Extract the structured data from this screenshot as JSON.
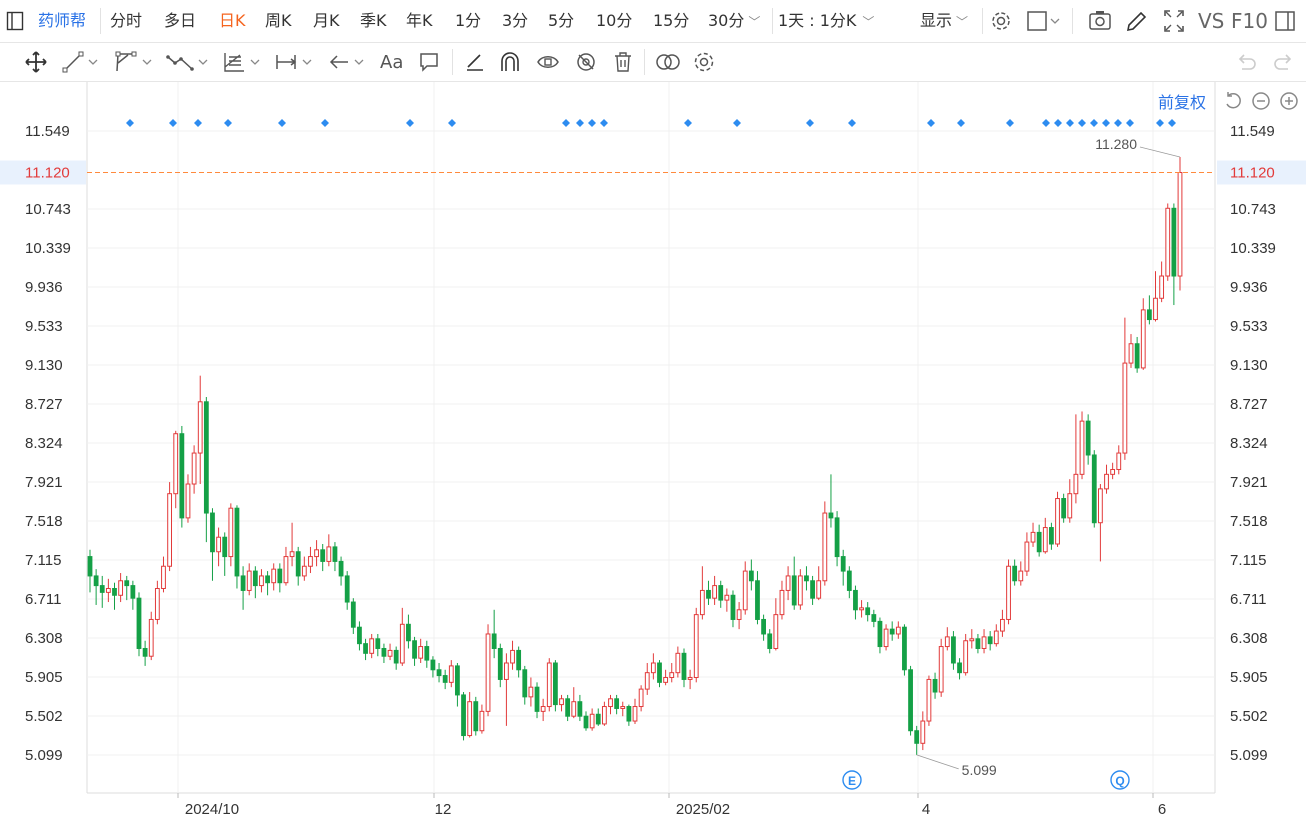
{
  "topbar": {
    "logo_icon": "panel-toggle-icon",
    "stock_name": "药师帮",
    "periods": [
      {
        "label": "分时",
        "active": false
      },
      {
        "label": "多日",
        "active": false
      },
      {
        "label": "日K",
        "active": true
      },
      {
        "label": "周K",
        "active": false
      },
      {
        "label": "月K",
        "active": false
      },
      {
        "label": "季K",
        "active": false
      },
      {
        "label": "年K",
        "active": false
      },
      {
        "label": "1分",
        "active": false
      },
      {
        "label": "3分",
        "active": false
      },
      {
        "label": "5分",
        "active": false
      },
      {
        "label": "10分",
        "active": false
      },
      {
        "label": "15分",
        "active": false
      }
    ],
    "more_period": "30分",
    "cycle_select": "1天 : 1分K",
    "display_label": "显示",
    "vs_label": "VS",
    "f10_label": "F10"
  },
  "toolbar": {
    "tools": [
      "move-icon",
      "line-tool-icon",
      "channel-tool-icon",
      "wave-tool-icon",
      "fib-tool-icon",
      "measure-tool-icon",
      "arrow-tool-icon",
      "text-tool-icon",
      "comment-tool-icon",
      "pen-tool-icon",
      "magnet-icon",
      "hide-drawings-icon",
      "hide-eye-icon",
      "delete-icon",
      "link-icon",
      "settings-icon"
    ],
    "text_tool_label": "Aa"
  },
  "chart_header": {
    "adjust_label": "前复权"
  },
  "chart_data": {
    "type": "candlestick",
    "y_ticks": [
      "11.549",
      "10.743",
      "10.339",
      "9.936",
      "9.533",
      "9.130",
      "8.727",
      "8.324",
      "7.921",
      "7.518",
      "7.115",
      "6.711",
      "6.308",
      "5.905",
      "5.502",
      "5.099"
    ],
    "ylim": [
      5.099,
      11.549
    ],
    "x_labels": [
      "2024/10",
      "12",
      "2025/02",
      "4",
      "6"
    ],
    "current_price": "11.120",
    "high_label": "11.280",
    "low_label": "5.099",
    "event_markers": [
      "E",
      "Q"
    ],
    "colors": {
      "up": "#e23a3a",
      "down": "#14a046",
      "marker": "#2d8cf0",
      "price_line": "#ff8a3d",
      "accent": "#2a72e6"
    },
    "candles": [
      [
        7.15,
        6.95,
        7.22,
        6.78
      ],
      [
        6.95,
        6.85,
        7.02,
        6.65
      ],
      [
        6.85,
        6.78,
        6.95,
        6.62
      ],
      [
        6.78,
        6.82,
        6.92,
        6.68
      ],
      [
        6.82,
        6.75,
        6.88,
        6.6
      ],
      [
        6.75,
        6.9,
        6.98,
        6.68
      ],
      [
        6.9,
        6.85,
        6.95,
        6.7
      ],
      [
        6.85,
        6.72,
        6.9,
        6.6
      ],
      [
        6.72,
        6.2,
        6.78,
        6.12
      ],
      [
        6.2,
        6.12,
        6.28,
        6.02
      ],
      [
        6.12,
        6.5,
        6.58,
        6.08
      ],
      [
        6.5,
        6.82,
        6.9,
        6.45
      ],
      [
        6.82,
        7.05,
        7.15,
        6.78
      ],
      [
        7.05,
        7.8,
        7.92,
        7.0
      ],
      [
        7.8,
        8.42,
        8.45,
        7.65
      ],
      [
        8.42,
        7.55,
        8.5,
        7.45
      ],
      [
        7.55,
        7.9,
        8.0,
        7.5
      ],
      [
        7.9,
        8.22,
        8.3,
        7.8
      ],
      [
        8.22,
        8.75,
        9.02,
        7.9
      ],
      [
        8.75,
        7.6,
        8.8,
        7.3
      ],
      [
        7.6,
        7.2,
        7.65,
        6.9
      ],
      [
        7.2,
        7.35,
        7.45,
        7.05
      ],
      [
        7.35,
        7.15,
        7.4,
        6.95
      ],
      [
        7.15,
        7.65,
        7.7,
        7.05
      ],
      [
        7.65,
        6.95,
        7.68,
        6.82
      ],
      [
        6.95,
        6.8,
        7.05,
        6.6
      ],
      [
        6.8,
        7.0,
        7.08,
        6.75
      ],
      [
        7.0,
        6.85,
        7.05,
        6.72
      ],
      [
        6.85,
        6.95,
        7.02,
        6.78
      ],
      [
        6.95,
        6.88,
        7.0,
        6.75
      ],
      [
        6.88,
        7.02,
        7.08,
        6.8
      ],
      [
        7.02,
        6.88,
        7.08,
        6.78
      ],
      [
        6.88,
        7.15,
        7.25,
        6.85
      ],
      [
        7.15,
        7.2,
        7.5,
        7.05
      ],
      [
        7.2,
        6.95,
        7.25,
        6.85
      ],
      [
        6.95,
        7.05,
        7.15,
        6.9
      ],
      [
        7.05,
        7.15,
        7.25,
        6.98
      ],
      [
        7.15,
        7.22,
        7.32,
        7.05
      ],
      [
        7.22,
        7.1,
        7.28,
        7.0
      ],
      [
        7.1,
        7.25,
        7.38,
        7.05
      ],
      [
        7.25,
        7.1,
        7.3,
        7.0
      ],
      [
        7.1,
        6.95,
        7.15,
        6.85
      ],
      [
        6.95,
        6.68,
        7.0,
        6.6
      ],
      [
        6.68,
        6.42,
        6.72,
        6.35
      ],
      [
        6.42,
        6.25,
        6.48,
        6.18
      ],
      [
        6.25,
        6.15,
        6.3,
        6.08
      ],
      [
        6.15,
        6.3,
        6.35,
        6.1
      ],
      [
        6.3,
        6.2,
        6.35,
        6.12
      ],
      [
        6.2,
        6.12,
        6.25,
        6.05
      ],
      [
        6.12,
        6.18,
        6.25,
        6.08
      ],
      [
        6.18,
        6.05,
        6.22,
        5.98
      ],
      [
        6.05,
        6.45,
        6.62,
        6.02
      ],
      [
        6.45,
        6.28,
        6.55,
        6.2
      ],
      [
        6.28,
        6.1,
        6.32,
        6.02
      ],
      [
        6.1,
        6.22,
        6.3,
        6.05
      ],
      [
        6.22,
        6.08,
        6.28,
        6.0
      ],
      [
        6.08,
        5.98,
        6.12,
        5.9
      ],
      [
        5.98,
        5.92,
        6.05,
        5.85
      ],
      [
        5.92,
        5.85,
        5.98,
        5.78
      ],
      [
        5.85,
        6.02,
        6.08,
        5.8
      ],
      [
        6.02,
        5.72,
        6.05,
        5.6
      ],
      [
        5.72,
        5.3,
        5.75,
        5.25
      ],
      [
        5.3,
        5.65,
        5.75,
        5.28
      ],
      [
        5.65,
        5.35,
        5.7,
        5.3
      ],
      [
        5.35,
        5.55,
        5.62,
        5.32
      ],
      [
        5.55,
        6.35,
        6.45,
        5.5
      ],
      [
        6.35,
        6.2,
        6.6,
        6.1
      ],
      [
        6.2,
        5.88,
        6.25,
        5.8
      ],
      [
        5.88,
        6.05,
        6.15,
        5.4
      ],
      [
        6.05,
        6.18,
        6.28,
        5.98
      ],
      [
        6.18,
        5.98,
        6.22,
        5.9
      ],
      [
        5.98,
        5.7,
        6.02,
        5.62
      ],
      [
        5.7,
        5.8,
        5.9,
        5.6
      ],
      [
        5.8,
        5.55,
        5.85,
        5.48
      ],
      [
        5.55,
        5.6,
        5.68,
        5.45
      ],
      [
        5.6,
        6.05,
        6.1,
        5.55
      ],
      [
        6.05,
        5.62,
        6.08,
        5.55
      ],
      [
        5.62,
        5.68,
        5.72,
        5.55
      ],
      [
        5.68,
        5.5,
        5.72,
        5.45
      ],
      [
        5.5,
        5.65,
        5.8,
        5.48
      ],
      [
        5.65,
        5.5,
        5.72,
        5.45
      ],
      [
        5.5,
        5.38,
        5.55,
        5.35
      ],
      [
        5.38,
        5.52,
        5.58,
        5.35
      ],
      [
        5.52,
        5.42,
        5.58,
        5.4
      ],
      [
        5.42,
        5.6,
        5.65,
        5.4
      ],
      [
        5.6,
        5.68,
        5.72,
        5.52
      ],
      [
        5.68,
        5.58,
        5.72,
        5.52
      ],
      [
        5.58,
        5.6,
        5.65,
        5.5
      ],
      [
        5.6,
        5.45,
        5.62,
        5.4
      ],
      [
        5.45,
        5.6,
        5.68,
        5.42
      ],
      [
        5.6,
        5.78,
        5.82,
        5.55
      ],
      [
        5.78,
        5.95,
        6.05,
        5.72
      ],
      [
        5.95,
        6.05,
        6.15,
        5.88
      ],
      [
        6.05,
        5.85,
        6.08,
        5.8
      ],
      [
        5.85,
        5.9,
        5.98,
        5.82
      ],
      [
        5.9,
        5.95,
        6.05,
        5.85
      ],
      [
        5.95,
        6.15,
        6.22,
        5.9
      ],
      [
        6.15,
        5.88,
        6.2,
        5.8
      ],
      [
        5.88,
        5.9,
        5.98,
        5.78
      ],
      [
        5.9,
        6.55,
        6.62,
        5.85
      ],
      [
        6.55,
        6.8,
        7.05,
        6.5
      ],
      [
        6.8,
        6.72,
        6.9,
        6.65
      ],
      [
        6.72,
        6.85,
        6.95,
        6.65
      ],
      [
        6.85,
        6.7,
        6.9,
        6.62
      ],
      [
        6.7,
        6.75,
        6.82,
        6.58
      ],
      [
        6.75,
        6.5,
        6.8,
        6.42
      ],
      [
        6.5,
        6.6,
        6.68,
        6.4
      ],
      [
        6.6,
        7.0,
        7.1,
        6.55
      ],
      [
        7.0,
        6.9,
        7.12,
        6.8
      ],
      [
        6.9,
        6.5,
        7.0,
        6.45
      ],
      [
        6.5,
        6.35,
        6.55,
        6.28
      ],
      [
        6.35,
        6.2,
        6.4,
        6.15
      ],
      [
        6.2,
        6.55,
        6.72,
        6.18
      ],
      [
        6.55,
        6.8,
        6.9,
        6.5
      ],
      [
        6.8,
        6.95,
        7.05,
        6.7
      ],
      [
        6.95,
        6.65,
        7.15,
        6.6
      ],
      [
        6.65,
        6.95,
        7.02,
        6.6
      ],
      [
        6.95,
        6.9,
        7.05,
        6.8
      ],
      [
        6.9,
        6.72,
        6.95,
        6.65
      ],
      [
        6.72,
        6.9,
        7.05,
        6.7
      ],
      [
        6.9,
        7.6,
        7.72,
        6.85
      ],
      [
        7.6,
        7.55,
        8.0,
        7.45
      ],
      [
        7.55,
        7.15,
        7.62,
        7.05
      ],
      [
        7.15,
        7.0,
        7.22,
        6.85
      ],
      [
        7.0,
        6.8,
        7.05,
        6.72
      ],
      [
        6.8,
        6.6,
        6.85,
        6.5
      ],
      [
        6.6,
        6.62,
        6.7,
        6.52
      ],
      [
        6.62,
        6.55,
        6.68,
        6.48
      ],
      [
        6.55,
        6.48,
        6.6,
        6.42
      ],
      [
        6.48,
        6.22,
        6.52,
        6.15
      ],
      [
        6.22,
        6.4,
        6.45,
        6.18
      ],
      [
        6.4,
        6.35,
        6.48,
        6.28
      ],
      [
        6.35,
        6.42,
        6.48,
        6.3
      ],
      [
        6.42,
        5.98,
        6.45,
        5.92
      ],
      [
        5.98,
        5.35,
        6.02,
        5.3
      ],
      [
        5.35,
        5.22,
        5.4,
        5.1
      ],
      [
        5.22,
        5.45,
        5.55,
        5.15
      ],
      [
        5.45,
        5.88,
        5.92,
        5.4
      ],
      [
        5.88,
        5.75,
        5.95,
        5.68
      ],
      [
        5.75,
        6.22,
        6.3,
        5.7
      ],
      [
        6.22,
        6.32,
        6.42,
        6.18
      ],
      [
        6.32,
        6.05,
        6.38,
        5.98
      ],
      [
        6.05,
        5.95,
        6.1,
        5.88
      ],
      [
        5.95,
        6.28,
        6.35,
        5.92
      ],
      [
        6.28,
        6.3,
        6.4,
        6.2
      ],
      [
        6.3,
        6.2,
        6.35,
        6.15
      ],
      [
        6.2,
        6.32,
        6.4,
        6.15
      ],
      [
        6.32,
        6.25,
        6.38,
        6.18
      ],
      [
        6.25,
        6.38,
        6.45,
        6.22
      ],
      [
        6.38,
        6.5,
        6.6,
        6.32
      ],
      [
        6.5,
        7.05,
        7.12,
        6.45
      ],
      [
        7.05,
        6.9,
        7.12,
        6.85
      ],
      [
        6.9,
        7.0,
        7.1,
        6.85
      ],
      [
        7.0,
        7.3,
        7.4,
        6.95
      ],
      [
        7.3,
        7.4,
        7.5,
        7.25
      ],
      [
        7.4,
        7.2,
        7.48,
        7.15
      ],
      [
        7.2,
        7.45,
        7.55,
        7.18
      ],
      [
        7.45,
        7.28,
        7.5,
        7.22
      ],
      [
        7.28,
        7.75,
        7.82,
        7.25
      ],
      [
        7.75,
        7.55,
        7.8,
        7.5
      ],
      [
        7.55,
        7.8,
        7.95,
        7.5
      ],
      [
        7.8,
        8.0,
        8.62,
        7.7
      ],
      [
        8.0,
        8.55,
        8.65,
        7.95
      ],
      [
        8.55,
        8.2,
        8.62,
        8.1
      ],
      [
        8.2,
        7.5,
        8.25,
        7.45
      ],
      [
        7.5,
        7.85,
        7.9,
        7.1
      ],
      [
        7.85,
        8.0,
        8.1,
        7.8
      ],
      [
        8.0,
        8.05,
        8.12,
        7.95
      ],
      [
        8.05,
        8.22,
        8.3,
        8.0
      ],
      [
        8.22,
        9.15,
        9.62,
        8.15
      ],
      [
        9.15,
        9.35,
        9.45,
        9.1
      ],
      [
        9.35,
        9.1,
        9.42,
        9.05
      ],
      [
        9.1,
        9.7,
        9.82,
        9.08
      ],
      [
        9.7,
        9.6,
        9.85,
        9.55
      ],
      [
        9.6,
        9.82,
        10.1,
        9.58
      ],
      [
        9.82,
        10.05,
        10.2,
        9.78
      ],
      [
        10.05,
        10.75,
        10.8,
        10.0
      ],
      [
        10.75,
        10.05,
        10.8,
        9.75
      ],
      [
        10.05,
        11.12,
        11.28,
        9.9
      ]
    ],
    "top_markers_x": [
      130,
      173,
      198,
      228,
      282,
      325,
      410,
      452,
      566,
      580,
      592,
      604,
      688,
      737,
      810,
      852,
      931,
      961,
      1010,
      1046,
      1058,
      1070,
      1082,
      1094,
      1106,
      1118,
      1130,
      1160,
      1172
    ]
  }
}
